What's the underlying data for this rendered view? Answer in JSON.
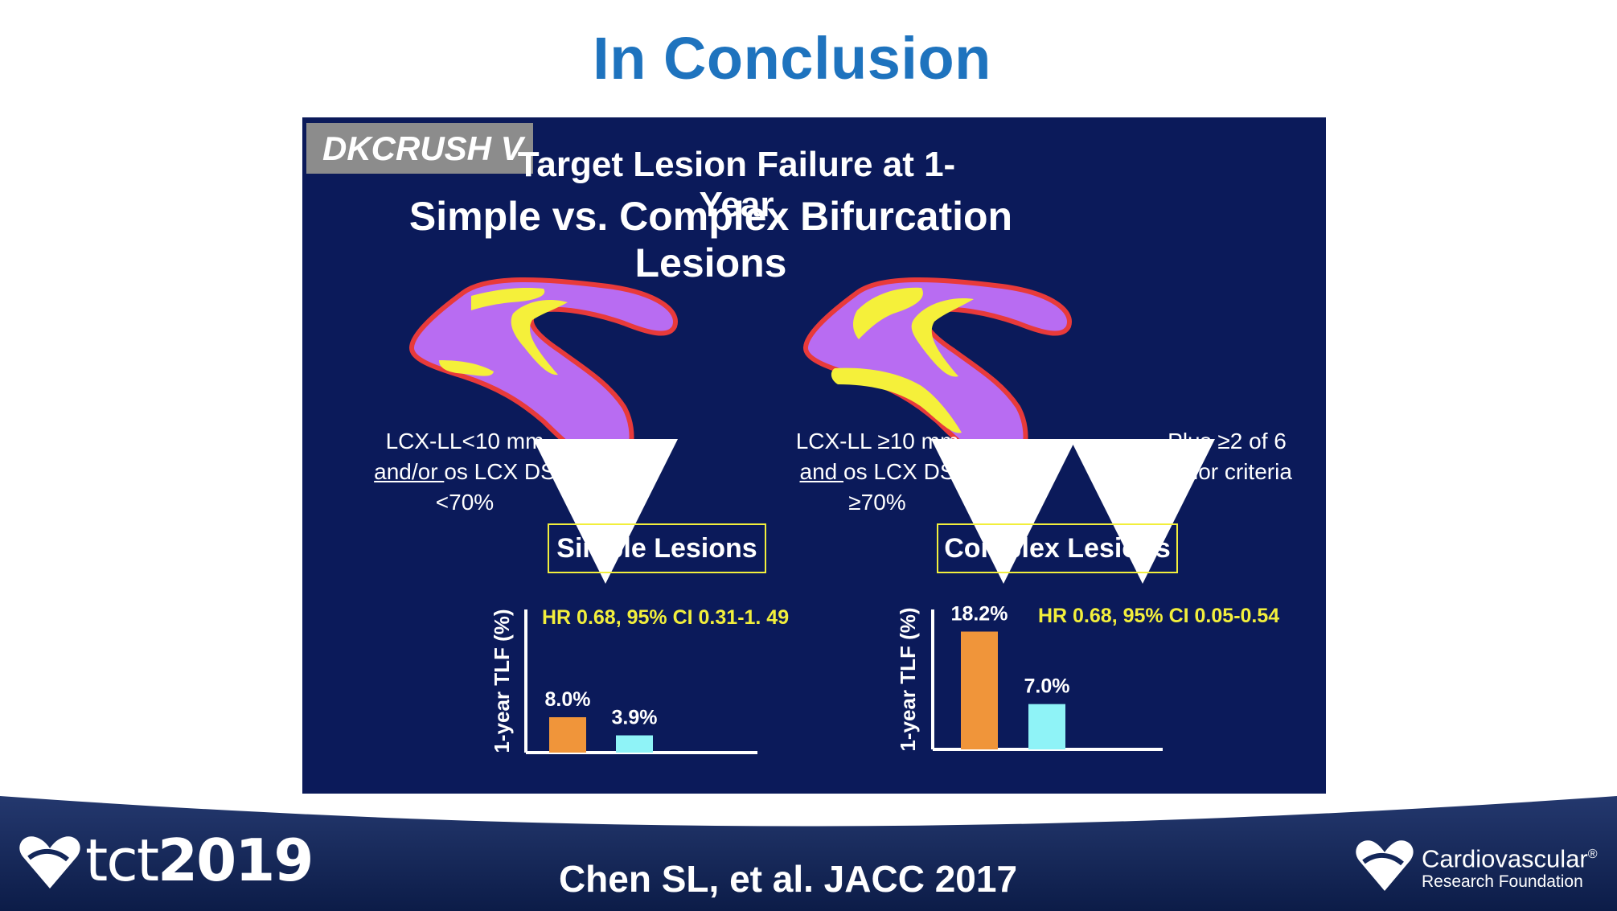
{
  "slide_title": "In Conclusion",
  "study_tag": "DKCRUSH V",
  "panel_title_line1": "Target Lesion Failure at 1-Year",
  "panel_title_line2": "Simple vs. Complex Bifurcation Lesions",
  "simple": {
    "criteria_line1": "LCX-LL<10 mm",
    "criteria_line2_underlined": "and/or ",
    "criteria_line2_rest": "os LCX DS <70%",
    "box_label": "Simple Lesions"
  },
  "complex": {
    "criteria_line1": "LCX-LL ≥10 mm",
    "criteria_line2_underlined": "and ",
    "criteria_line2_rest": "os LCX DS ≥70%",
    "extra_line1": "Plus ≥2 of 6",
    "extra_line2": "minor criteria",
    "box_label": "Complex Lesions"
  },
  "chart_data": [
    {
      "type": "bar",
      "ylabel": "1-year TLF (%)",
      "annotation": "HR 0.68, 95% CI 0.31-1. 49",
      "values": [
        8.0,
        3.9
      ],
      "labels": [
        "8.0%",
        "3.9%"
      ],
      "colors": [
        "#f0953a",
        "#8ff3f7"
      ]
    },
    {
      "type": "bar",
      "ylabel": "1-year TLF (%)",
      "annotation": "HR 0.68, 95% CI 0.05-0.54",
      "values": [
        18.2,
        7.0
      ],
      "labels": [
        "18.2%",
        "7.0%"
      ],
      "colors": [
        "#f0953a",
        "#8ff3f7"
      ]
    }
  ],
  "citation": "Chen SL, et al. JACC 2017",
  "footer_logo_left": {
    "prefix": "tct",
    "year": "2019"
  },
  "footer_logo_right": {
    "line1": "Cardiovascular",
    "line2": "Research Foundation",
    "mark": "®"
  },
  "colors": {
    "title_blue": "#1e73be",
    "panel_navy": "#0b1a5a",
    "annotation_yellow": "#f2ef3c",
    "bar_orange": "#f0953a",
    "bar_cyan": "#8ff3f7",
    "vessel_purple": "#b86cf2",
    "vessel_outline": "#e83a3a",
    "plaque_yellow": "#f5f03a"
  }
}
